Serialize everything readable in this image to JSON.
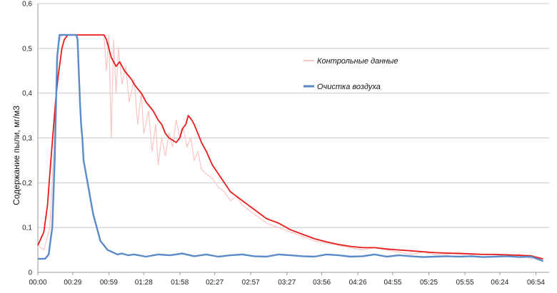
{
  "chart_data": {
    "type": "line",
    "ylabel": "Содержание пыли, мг/м3",
    "xlabel": "",
    "ylim": [
      0,
      0.6
    ],
    "yticks": [
      "0",
      "0,1",
      "0,2",
      "0,3",
      "0,4",
      "0,5",
      "0,6"
    ],
    "ytick_values": [
      0,
      0.1,
      0.2,
      0.3,
      0.4,
      0.5,
      0.6
    ],
    "xlim": [
      0,
      425
    ],
    "xticks": [
      "00:00",
      "00:29",
      "00:59",
      "01:28",
      "01:58",
      "02:27",
      "02:57",
      "03:27",
      "03:56",
      "04:26",
      "04:55",
      "05:25",
      "05:55",
      "06:24",
      "06:54"
    ],
    "xtick_values": [
      0,
      29,
      59,
      88,
      118,
      147,
      177,
      207,
      236,
      266,
      295,
      325,
      355,
      384,
      414
    ],
    "grid": "horizontal",
    "legend_position": "right",
    "series": [
      {
        "name": "Контрольные данные",
        "color": "#f9c4c4",
        "x": [
          0,
          5,
          10,
          12,
          15,
          17,
          20,
          22,
          25,
          30,
          35,
          40,
          45,
          50,
          55,
          57,
          59,
          61,
          63,
          65,
          67,
          70,
          73,
          76,
          80,
          83,
          86,
          88,
          92,
          95,
          98,
          100,
          103,
          106,
          109,
          112,
          115,
          118,
          121,
          124,
          127,
          130,
          133,
          136,
          140,
          145,
          150,
          155,
          160,
          165,
          170,
          175,
          180,
          190,
          200,
          210,
          220,
          230,
          240,
          250,
          260,
          270,
          280,
          290,
          300,
          310,
          320,
          330,
          340,
          350,
          360,
          370,
          380,
          390,
          400,
          410,
          415,
          420
        ],
        "values": [
          0.06,
          0.05,
          0.1,
          0.2,
          0.38,
          0.51,
          0.53,
          0.53,
          0.53,
          0.53,
          0.53,
          0.53,
          0.53,
          0.53,
          0.53,
          0.45,
          0.53,
          0.3,
          0.52,
          0.4,
          0.5,
          0.42,
          0.46,
          0.38,
          0.43,
          0.33,
          0.4,
          0.31,
          0.36,
          0.27,
          0.33,
          0.24,
          0.3,
          0.26,
          0.31,
          0.28,
          0.34,
          0.3,
          0.32,
          0.28,
          0.3,
          0.25,
          0.27,
          0.23,
          0.22,
          0.21,
          0.19,
          0.18,
          0.16,
          0.17,
          0.15,
          0.14,
          0.13,
          0.11,
          0.1,
          0.09,
          0.08,
          0.07,
          0.065,
          0.06,
          0.055,
          0.05,
          0.055,
          0.05,
          0.045,
          0.04,
          0.045,
          0.04,
          0.04,
          0.045,
          0.04,
          0.04,
          0.04,
          0.035,
          0.04,
          0.03,
          0.035,
          0.03
        ]
      },
      {
        "name": "",
        "color": "#e81b1b",
        "x": [
          0,
          5,
          8,
          10,
          12,
          15,
          17,
          20,
          22,
          25,
          28,
          30,
          35,
          40,
          45,
          50,
          55,
          57,
          59,
          61,
          63,
          65,
          68,
          70,
          72,
          75,
          78,
          80,
          83,
          86,
          88,
          90,
          93,
          96,
          100,
          103,
          106,
          109,
          112,
          115,
          118,
          120,
          123,
          125,
          128,
          130,
          133,
          136,
          140,
          145,
          150,
          155,
          160,
          165,
          170,
          175,
          180,
          190,
          200,
          210,
          220,
          230,
          240,
          250,
          260,
          270,
          280,
          290,
          300,
          310,
          320,
          330,
          340,
          350,
          360,
          370,
          380,
          390,
          400,
          410,
          415,
          420
        ],
        "values": [
          0.06,
          0.09,
          0.15,
          0.22,
          0.29,
          0.39,
          0.44,
          0.5,
          0.52,
          0.53,
          0.53,
          0.53,
          0.53,
          0.53,
          0.53,
          0.53,
          0.53,
          0.52,
          0.5,
          0.48,
          0.47,
          0.46,
          0.47,
          0.46,
          0.45,
          0.44,
          0.43,
          0.42,
          0.41,
          0.4,
          0.39,
          0.38,
          0.37,
          0.36,
          0.34,
          0.33,
          0.31,
          0.3,
          0.295,
          0.29,
          0.3,
          0.32,
          0.33,
          0.35,
          0.34,
          0.33,
          0.31,
          0.29,
          0.27,
          0.24,
          0.22,
          0.2,
          0.18,
          0.17,
          0.16,
          0.15,
          0.14,
          0.12,
          0.11,
          0.095,
          0.085,
          0.075,
          0.068,
          0.062,
          0.058,
          0.055,
          0.055,
          0.052,
          0.05,
          0.048,
          0.046,
          0.044,
          0.043,
          0.042,
          0.041,
          0.04,
          0.04,
          0.039,
          0.038,
          0.037,
          0.033,
          0.03
        ]
      },
      {
        "name": "Очистка воздуха",
        "color": "#5a8ac8",
        "x": [
          0,
          3,
          6,
          9,
          10,
          12,
          14,
          16,
          18,
          20,
          22,
          24,
          26,
          28,
          30,
          32,
          33,
          34,
          35,
          36,
          37,
          38,
          40,
          42,
          44,
          46,
          48,
          50,
          52,
          55,
          58,
          62,
          66,
          70,
          75,
          80,
          90,
          100,
          110,
          120,
          130,
          140,
          150,
          160,
          170,
          180,
          190,
          200,
          210,
          220,
          230,
          240,
          250,
          260,
          270,
          280,
          290,
          300,
          310,
          320,
          330,
          340,
          350,
          360,
          370,
          380,
          390,
          400,
          410,
          415,
          420
        ],
        "values": [
          0.03,
          0.03,
          0.03,
          0.04,
          0.06,
          0.1,
          0.25,
          0.48,
          0.53,
          0.53,
          0.53,
          0.53,
          0.53,
          0.53,
          0.53,
          0.53,
          0.52,
          0.45,
          0.38,
          0.33,
          0.3,
          0.25,
          0.22,
          0.19,
          0.16,
          0.13,
          0.11,
          0.09,
          0.07,
          0.06,
          0.05,
          0.045,
          0.04,
          0.042,
          0.038,
          0.04,
          0.035,
          0.04,
          0.038,
          0.042,
          0.036,
          0.04,
          0.035,
          0.038,
          0.04,
          0.036,
          0.035,
          0.04,
          0.038,
          0.036,
          0.035,
          0.04,
          0.038,
          0.035,
          0.036,
          0.04,
          0.035,
          0.038,
          0.036,
          0.034,
          0.035,
          0.036,
          0.035,
          0.036,
          0.034,
          0.035,
          0.036,
          0.034,
          0.035,
          0.03,
          0.025
        ]
      }
    ],
    "legend": [
      {
        "name": "Контрольные данные",
        "color": "#f9c4c4"
      },
      {
        "name": "Очистка воздуха",
        "color": "#5a8ac8"
      }
    ]
  }
}
